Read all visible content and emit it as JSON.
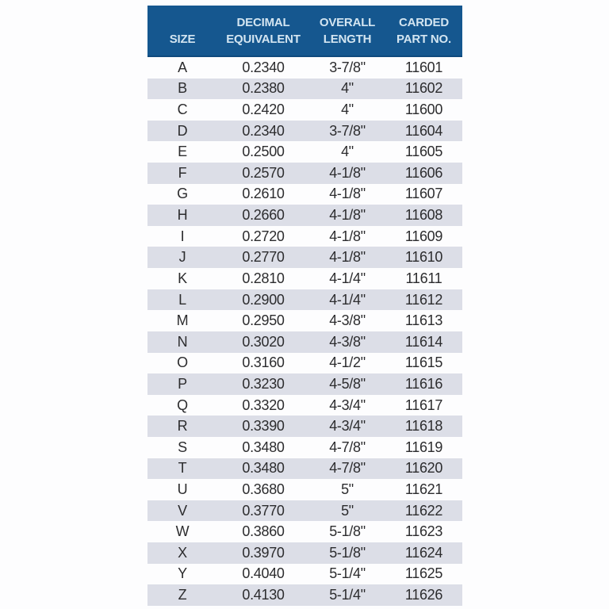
{
  "chart_data": {
    "type": "table",
    "columns": [
      "SIZE",
      "DECIMAL EQUIVALENT",
      "OVERALL LENGTH",
      "CARDED PART NO."
    ],
    "headers": [
      [
        "SIZE"
      ],
      [
        "DECIMAL",
        "EQUIVALENT"
      ],
      [
        "OVERALL",
        "LENGTH"
      ],
      [
        "CARDED",
        "PART NO."
      ]
    ],
    "rows": [
      [
        "A",
        "0.2340",
        "3-7/8\"",
        "11601"
      ],
      [
        "B",
        "0.2380",
        "4\"",
        "11602"
      ],
      [
        "C",
        "0.2420",
        "4\"",
        "11600"
      ],
      [
        "D",
        "0.2340",
        "3-7/8\"",
        "11604"
      ],
      [
        "E",
        "0.2500",
        "4\"",
        "11605"
      ],
      [
        "F",
        "0.2570",
        "4-1/8\"",
        "11606"
      ],
      [
        "G",
        "0.2610",
        "4-1/8\"",
        "11607"
      ],
      [
        "H",
        "0.2660",
        "4-1/8\"",
        "11608"
      ],
      [
        "I",
        "0.2720",
        "4-1/8\"",
        "11609"
      ],
      [
        "J",
        "0.2770",
        "4-1/8\"",
        "11610"
      ],
      [
        "K",
        "0.2810",
        "4-1/4\"",
        "11611"
      ],
      [
        "L",
        "0.2900",
        "4-1/4\"",
        "11612"
      ],
      [
        "M",
        "0.2950",
        "4-3/8\"",
        "11613"
      ],
      [
        "N",
        "0.3020",
        "4-3/8\"",
        "11614"
      ],
      [
        "O",
        "0.3160",
        "4-1/2\"",
        "11615"
      ],
      [
        "P",
        "0.3230",
        "4-5/8\"",
        "11616"
      ],
      [
        "Q",
        "0.3320",
        "4-3/4\"",
        "11617"
      ],
      [
        "R",
        "0.3390",
        "4-3/4\"",
        "11618"
      ],
      [
        "S",
        "0.3480",
        "4-7/8\"",
        "11619"
      ],
      [
        "T",
        "0.3480",
        "4-7/8\"",
        "11620"
      ],
      [
        "U",
        "0.3680",
        "5\"",
        "11621"
      ],
      [
        "V",
        "0.3770",
        "5\"",
        "11622"
      ],
      [
        "W",
        "0.3860",
        "5-1/8\"",
        "11623"
      ],
      [
        "X",
        "0.3970",
        "5-1/8\"",
        "11624"
      ],
      [
        "Y",
        "0.4040",
        "5-1/4\"",
        "11625"
      ],
      [
        "Z",
        "0.4130",
        "5-1/4\"",
        "11626"
      ]
    ],
    "layout_hints": {
      "striped": true,
      "stripe_rows": "even rows starting with second (B, D, ... Z)"
    }
  },
  "colors": {
    "header_bg": "#15578f",
    "header_text": "#d3e5f1",
    "stripe_bg": "#dcdee7",
    "body_text": "#2c2c2e",
    "page_bg": "#fdfdfe"
  }
}
